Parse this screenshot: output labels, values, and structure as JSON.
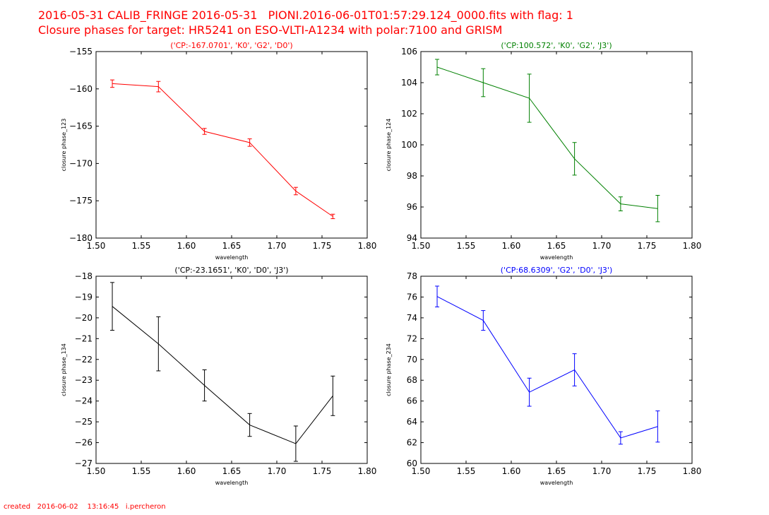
{
  "header": {
    "line1": "2016-05-31 CALIB_FRINGE 2016-05-31   PIONI.2016-06-01T01:57:29.124_0000.fits with flag: 1",
    "line2": "Closure phases for target: HR5241 on ESO-VLTI-A1234 with polar:7100 and GRISM"
  },
  "footer": {
    "text": "created   2016-06-02    13:16:45   i.percheron"
  },
  "chart_data": [
    {
      "type": "line",
      "title": "('CP:-167.0701', 'K0', 'G2', 'D0')",
      "title_color": "#ff0000",
      "color": "#ff0000",
      "xlabel": "wavelength",
      "ylabel": "closure phase_123",
      "xlim": [
        1.5,
        1.8
      ],
      "ylim": [
        -180,
        -155
      ],
      "xticks": [
        1.5,
        1.55,
        1.6,
        1.65,
        1.7,
        1.75,
        1.8
      ],
      "yticks": [
        -180,
        -175,
        -170,
        -165,
        -160,
        -155
      ],
      "xtick_labels": [
        "1.50",
        "1.55",
        "1.60",
        "1.65",
        "1.70",
        "1.75",
        "1.80"
      ],
      "ytick_labels": [
        "−180",
        "−175",
        "−170",
        "−165",
        "−160",
        "−155"
      ],
      "x": [
        1.518,
        1.569,
        1.62,
        1.67,
        1.721,
        1.762
      ],
      "y": [
        -159.3,
        -159.7,
        -165.7,
        -167.2,
        -173.7,
        -177.1
      ],
      "yerr": [
        0.5,
        0.7,
        0.4,
        0.5,
        0.5,
        0.3
      ]
    },
    {
      "type": "line",
      "title": "('CP:100.572', 'K0', 'G2', 'J3')",
      "title_color": "#008000",
      "color": "#008000",
      "xlabel": "wavelength",
      "ylabel": "closure phase_124",
      "xlim": [
        1.5,
        1.8
      ],
      "ylim": [
        94,
        106
      ],
      "xticks": [
        1.5,
        1.55,
        1.6,
        1.65,
        1.7,
        1.75,
        1.8
      ],
      "yticks": [
        94,
        96,
        98,
        100,
        102,
        104,
        106
      ],
      "xtick_labels": [
        "1.50",
        "1.55",
        "1.60",
        "1.65",
        "1.70",
        "1.75",
        "1.80"
      ],
      "ytick_labels": [
        "94",
        "96",
        "98",
        "100",
        "102",
        "104",
        "106"
      ],
      "x": [
        1.518,
        1.569,
        1.62,
        1.67,
        1.721,
        1.762
      ],
      "y": [
        105.0,
        104.0,
        103.0,
        99.1,
        96.2,
        95.9
      ],
      "yerr": [
        0.5,
        0.9,
        1.55,
        1.05,
        0.45,
        0.85
      ]
    },
    {
      "type": "line",
      "title": "('CP:-23.1651', 'K0', 'D0', 'J3')",
      "title_color": "#000000",
      "color": "#000000",
      "xlabel": "wavelength",
      "ylabel": "closure phase_134",
      "xlim": [
        1.5,
        1.8
      ],
      "ylim": [
        -27,
        -18
      ],
      "xticks": [
        1.5,
        1.55,
        1.6,
        1.65,
        1.7,
        1.75,
        1.8
      ],
      "yticks": [
        -27,
        -26,
        -25,
        -24,
        -23,
        -22,
        -21,
        -20,
        -19,
        -18
      ],
      "xtick_labels": [
        "1.50",
        "1.55",
        "1.60",
        "1.65",
        "1.70",
        "1.75",
        "1.80"
      ],
      "ytick_labels": [
        "−27",
        "−26",
        "−25",
        "−24",
        "−23",
        "−22",
        "−21",
        "−20",
        "−19",
        "−18"
      ],
      "x": [
        1.518,
        1.569,
        1.62,
        1.67,
        1.721,
        1.762
      ],
      "y": [
        -19.45,
        -21.25,
        -23.25,
        -25.15,
        -26.05,
        -23.75
      ],
      "yerr": [
        1.15,
        1.3,
        0.75,
        0.55,
        0.85,
        0.95
      ]
    },
    {
      "type": "line",
      "title": "('CP:68.6309', 'G2', 'D0', 'J3')",
      "title_color": "#0000ff",
      "color": "#0000ff",
      "xlabel": "wavelength",
      "ylabel": "closure phase_234",
      "xlim": [
        1.5,
        1.8
      ],
      "ylim": [
        60,
        78
      ],
      "xticks": [
        1.5,
        1.55,
        1.6,
        1.65,
        1.7,
        1.75,
        1.8
      ],
      "yticks": [
        60,
        62,
        64,
        66,
        68,
        70,
        72,
        74,
        76,
        78
      ],
      "xtick_labels": [
        "1.50",
        "1.55",
        "1.60",
        "1.65",
        "1.70",
        "1.75",
        "1.80"
      ],
      "ytick_labels": [
        "60",
        "62",
        "64",
        "66",
        "68",
        "70",
        "72",
        "74",
        "76",
        "78"
      ],
      "x": [
        1.518,
        1.569,
        1.62,
        1.67,
        1.721,
        1.762
      ],
      "y": [
        76.05,
        73.75,
        66.85,
        69.0,
        62.45,
        63.55
      ],
      "yerr": [
        1.0,
        0.95,
        1.35,
        1.55,
        0.6,
        1.5
      ]
    }
  ]
}
